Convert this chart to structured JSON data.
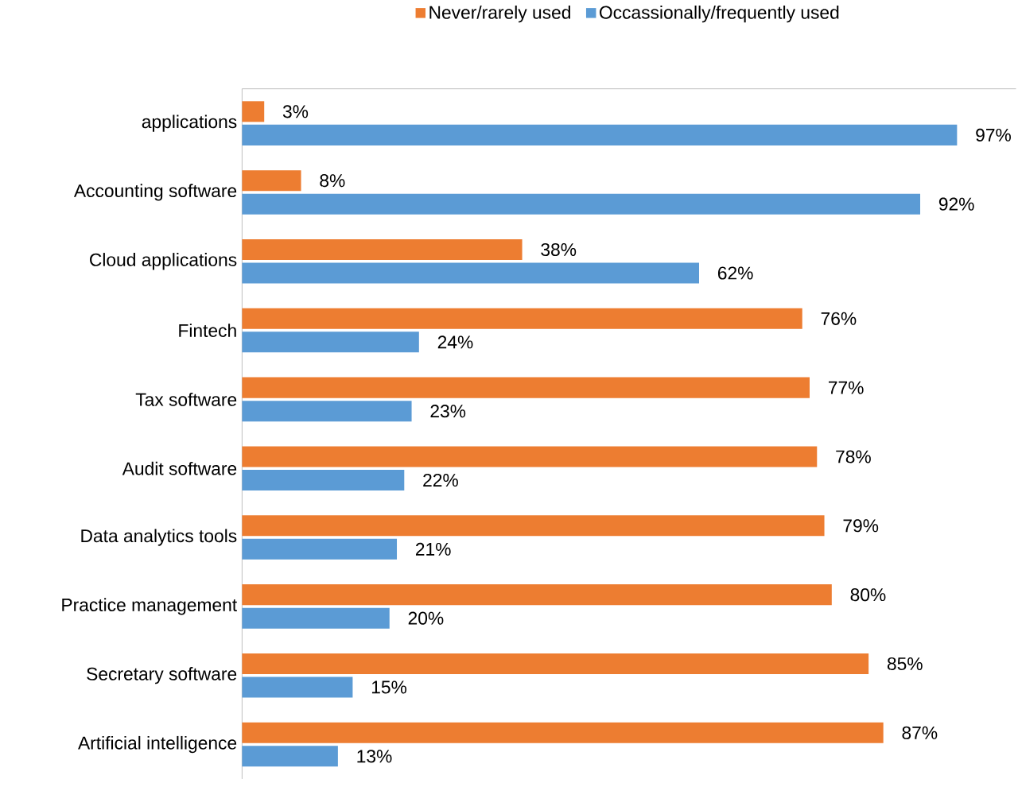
{
  "chart_data": {
    "type": "bar",
    "orientation": "horizontal",
    "legend": "top",
    "tick_labels": "y",
    "xlim": [
      0,
      105
    ],
    "categories": [
      "applications",
      "Accounting software",
      "Cloud applications",
      "Fintech",
      "Tax software",
      "Audit software",
      "Data analytics tools",
      "Practice management",
      "Secretary software",
      "Artificial intelligence"
    ],
    "series": [
      {
        "name": "Never/rarely used",
        "color": "#ed7d31",
        "values": [
          3,
          8,
          38,
          76,
          77,
          78,
          79,
          80,
          85,
          87
        ],
        "value_labels": [
          "3%",
          "8%",
          "38%",
          "76%",
          "77%",
          "78%",
          "79%",
          "80%",
          "85%",
          "87%"
        ]
      },
      {
        "name": "Occassionally/frequently used",
        "color": "#5b9bd5",
        "values": [
          97,
          92,
          62,
          24,
          23,
          22,
          21,
          20,
          15,
          13
        ],
        "value_labels": [
          "97%",
          "92%",
          "62%",
          "24%",
          "23%",
          "22%",
          "21%",
          "20%",
          "15%",
          "13%"
        ]
      }
    ]
  }
}
